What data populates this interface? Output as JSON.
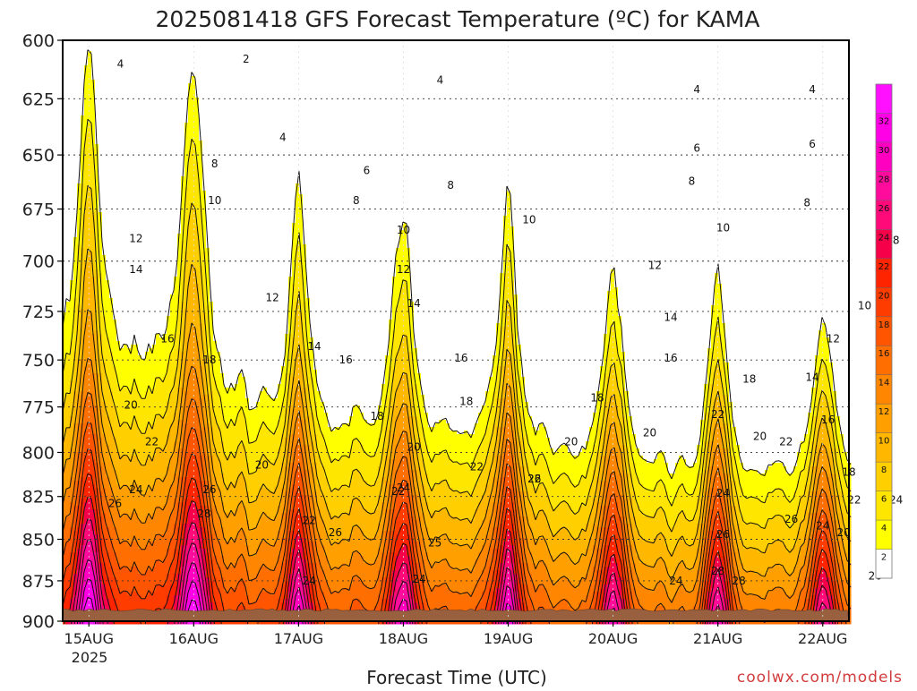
{
  "chart_data": {
    "type": "heatmap",
    "title": "2025081418 GFS Forecast Temperature (ºC) for KAMA",
    "xlabel": "Forecast Time (UTC)",
    "ylabel": "",
    "credit": "coolwx.com/models",
    "x_ticks": [
      "15AUG",
      "16AUG",
      "17AUG",
      "18AUG",
      "19AUG",
      "20AUG",
      "21AUG",
      "22AUG"
    ],
    "x_year_label": "2025",
    "y_ticks": [
      600,
      625,
      650,
      675,
      700,
      725,
      750,
      775,
      800,
      825,
      850,
      875,
      900
    ],
    "ylim": [
      900,
      600
    ],
    "xlim_days": [
      -0.25,
      7.25
    ],
    "y_scale": "log-pressure (hPa)",
    "grid": true,
    "colorbar": {
      "ticks": [
        2,
        4,
        6,
        8,
        10,
        12,
        14,
        16,
        18,
        20,
        22,
        24,
        26,
        28,
        30,
        32
      ],
      "colors": [
        "#ffffff",
        "#ffff00",
        "#ffe600",
        "#ffcf00",
        "#ffb700",
        "#ff9f00",
        "#ff8600",
        "#ff6e00",
        "#ff5400",
        "#ff3c00",
        "#ff2400",
        "#f7004a",
        "#ff0a78",
        "#ff0c9c",
        "#ff00c0",
        "#ff00e6",
        "#ff10ff"
      ]
    },
    "ground_level_hpa": 893,
    "diurnal_surface_max": [
      29,
      29,
      26,
      26,
      26,
      24,
      24,
      23
    ],
    "contour_labels": [
      {
        "v": 4,
        "day": 0.3,
        "p": 610
      },
      {
        "v": 2,
        "day": 1.5,
        "p": 608
      },
      {
        "v": 4,
        "day": 1.85,
        "p": 642
      },
      {
        "v": 4,
        "day": 3.35,
        "p": 617
      },
      {
        "v": 4,
        "day": 5.8,
        "p": 621
      },
      {
        "v": 4,
        "day": 6.9,
        "p": 621
      },
      {
        "v": 6,
        "day": 2.65,
        "p": 657
      },
      {
        "v": 6,
        "day": 5.8,
        "p": 647
      },
      {
        "v": 6,
        "day": 6.9,
        "p": 645
      },
      {
        "v": 6,
        "day": 7.6,
        "p": 668
      },
      {
        "v": 8,
        "day": 1.2,
        "p": 654
      },
      {
        "v": 8,
        "day": 2.55,
        "p": 671
      },
      {
        "v": 8,
        "day": 3.45,
        "p": 664
      },
      {
        "v": 8,
        "day": 5.75,
        "p": 662
      },
      {
        "v": 8,
        "day": 6.85,
        "p": 672
      },
      {
        "v": 8,
        "day": 7.7,
        "p": 690
      },
      {
        "v": 10,
        "day": 1.2,
        "p": 671
      },
      {
        "v": 10,
        "day": 3.0,
        "p": 685
      },
      {
        "v": 10,
        "day": 4.2,
        "p": 680
      },
      {
        "v": 10,
        "day": 6.05,
        "p": 684
      },
      {
        "v": 10,
        "day": 7.4,
        "p": 722
      },
      {
        "v": 12,
        "day": 0.45,
        "p": 689
      },
      {
        "v": 12,
        "day": 1.75,
        "p": 718
      },
      {
        "v": 12,
        "day": 3.0,
        "p": 704
      },
      {
        "v": 12,
        "day": 5.4,
        "p": 702
      },
      {
        "v": 12,
        "day": 7.1,
        "p": 739
      },
      {
        "v": 14,
        "day": 0.45,
        "p": 704
      },
      {
        "v": 14,
        "day": 2.15,
        "p": 743
      },
      {
        "v": 14,
        "day": 3.1,
        "p": 721
      },
      {
        "v": 14,
        "day": 5.55,
        "p": 728
      },
      {
        "v": 14,
        "day": 6.9,
        "p": 759
      },
      {
        "v": 16,
        "day": 0.75,
        "p": 739
      },
      {
        "v": 16,
        "day": 2.45,
        "p": 750
      },
      {
        "v": 16,
        "day": 3.55,
        "p": 749
      },
      {
        "v": 16,
        "day": 5.55,
        "p": 749
      },
      {
        "v": 16,
        "day": 7.05,
        "p": 782
      },
      {
        "v": 18,
        "day": 1.15,
        "p": 750
      },
      {
        "v": 18,
        "day": 2.75,
        "p": 780
      },
      {
        "v": 18,
        "day": 3.6,
        "p": 772
      },
      {
        "v": 18,
        "day": 4.85,
        "p": 770
      },
      {
        "v": 18,
        "day": 6.3,
        "p": 760
      },
      {
        "v": 18,
        "day": 7.25,
        "p": 811
      },
      {
        "v": 20,
        "day": 0.4,
        "p": 774
      },
      {
        "v": 20,
        "day": 1.65,
        "p": 807
      },
      {
        "v": 20,
        "day": 3.1,
        "p": 797
      },
      {
        "v": 20,
        "day": 4.6,
        "p": 794
      },
      {
        "v": 20,
        "day": 5.35,
        "p": 789
      },
      {
        "v": 20,
        "day": 6.4,
        "p": 791
      },
      {
        "v": 20,
        "day": 7.2,
        "p": 846
      },
      {
        "v": 22,
        "day": 0.6,
        "p": 794
      },
      {
        "v": 22,
        "day": 2.1,
        "p": 839
      },
      {
        "v": 22,
        "day": 2.95,
        "p": 822
      },
      {
        "v": 22,
        "day": 3.7,
        "p": 808
      },
      {
        "v": 22,
        "day": 4.25,
        "p": 815
      },
      {
        "v": 22,
        "day": 6.0,
        "p": 779
      },
      {
        "v": 22,
        "day": 6.65,
        "p": 794
      },
      {
        "v": 22,
        "day": 7.3,
        "p": 827
      },
      {
        "v": 24,
        "day": 0.45,
        "p": 821
      },
      {
        "v": 24,
        "day": 2.1,
        "p": 875
      },
      {
        "v": 24,
        "day": 3.0,
        "p": 820
      },
      {
        "v": 24,
        "day": 3.15,
        "p": 874
      },
      {
        "v": 24,
        "day": 5.6,
        "p": 875
      },
      {
        "v": 24,
        "day": 6.05,
        "p": 823
      },
      {
        "v": 24,
        "day": 7.0,
        "p": 842
      },
      {
        "v": 24,
        "day": 7.7,
        "p": 827
      },
      {
        "v": 26,
        "day": 0.25,
        "p": 829
      },
      {
        "v": 26,
        "day": 1.15,
        "p": 821
      },
      {
        "v": 26,
        "day": 2.35,
        "p": 846
      },
      {
        "v": 26,
        "day": 4.25,
        "p": 815
      },
      {
        "v": 26,
        "day": 6.05,
        "p": 847
      },
      {
        "v": 26,
        "day": 6.7,
        "p": 838
      },
      {
        "v": 26,
        "day": 7.5,
        "p": 872
      },
      {
        "v": 28,
        "day": 1.1,
        "p": 835
      },
      {
        "v": 28,
        "day": 6.0,
        "p": 869
      },
      {
        "v": 28,
        "day": 6.2,
        "p": 875
      },
      {
        "v": 25,
        "day": 3.3,
        "p": 852
      }
    ]
  }
}
